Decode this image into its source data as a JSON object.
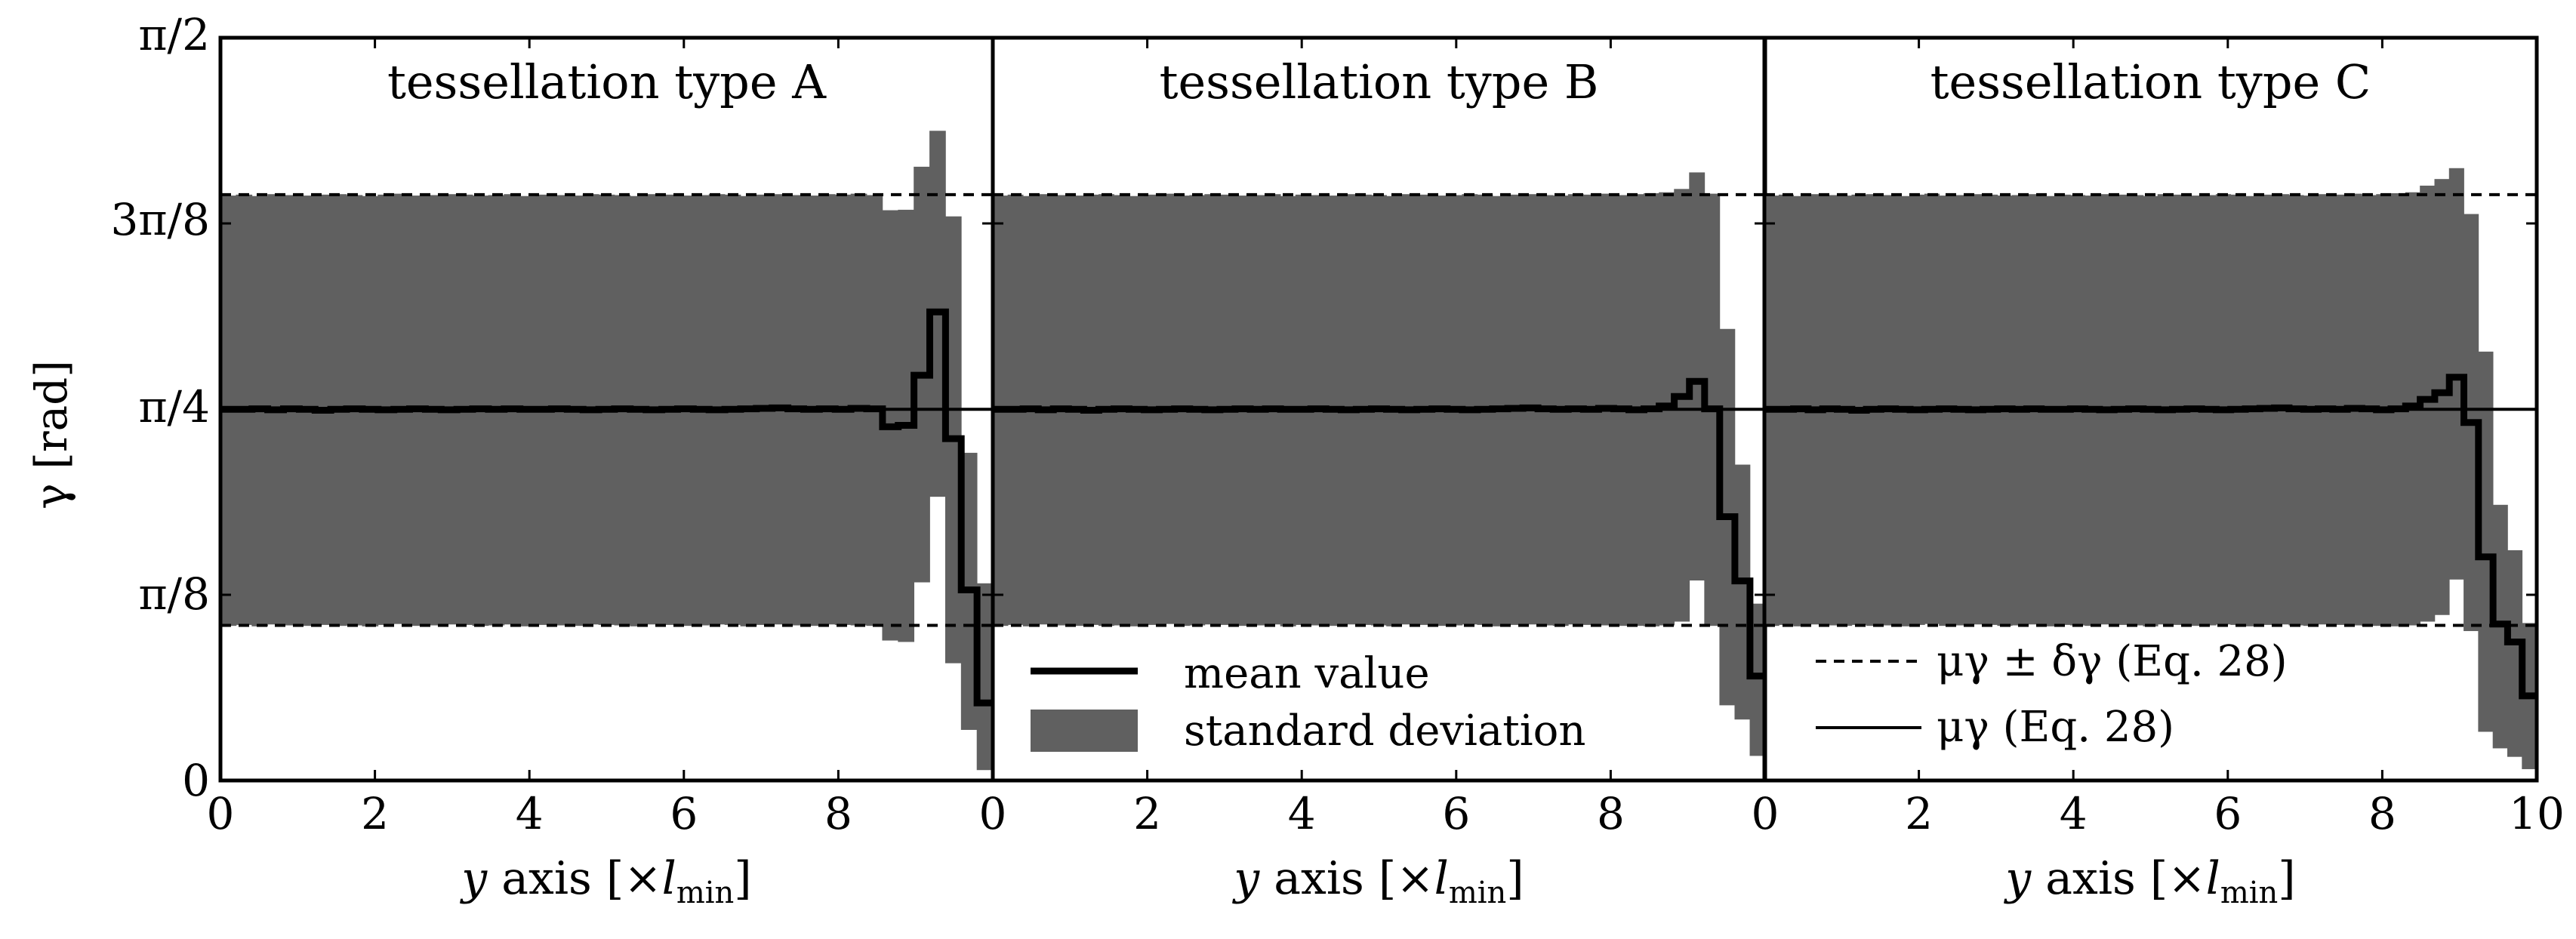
{
  "figure": {
    "y_axis_label": "γ [rad]",
    "y_tick_labels": [
      "0",
      "π/8",
      "π/4",
      "3π/8",
      "π/2"
    ]
  },
  "legend_left": {
    "mean_label": "mean value",
    "std_label": "standard deviation"
  },
  "legend_right": {
    "dashed_label": "μγ ± δγ (Eq. 28)",
    "solid_label": "μγ (Eq. 28)"
  },
  "colors": {
    "band": "#606060",
    "line": "#000000",
    "background": "#ffffff"
  },
  "chart_data": [
    {
      "type": "area",
      "title": "tessellation type A",
      "xlabel": "y axis [×l_min]",
      "ylabel": "γ [rad]",
      "xlim": [
        0,
        10
      ],
      "ylim": [
        0,
        1.5708
      ],
      "x_ticks": [
        "0",
        "2",
        "4",
        "6",
        "8",
        "0"
      ],
      "y_ticks": [
        "0",
        "π/8",
        "π/4",
        "3π/8",
        "π/2"
      ],
      "reference": {
        "mu": 0.785,
        "mu_minus_delta": 0.328,
        "mu_plus_delta": 1.239
      },
      "series": [
        {
          "name": "mean value",
          "style": "step",
          "values": [
            0.785,
            0.785,
            0.786,
            0.784,
            0.786,
            0.785,
            0.783,
            0.785,
            0.786,
            0.785,
            0.784,
            0.785,
            0.786,
            0.785,
            0.784,
            0.785,
            0.786,
            0.785,
            0.786,
            0.785,
            0.785,
            0.786,
            0.785,
            0.784,
            0.785,
            0.786,
            0.785,
            0.784,
            0.785,
            0.786,
            0.785,
            0.784,
            0.785,
            0.786,
            0.787,
            0.788,
            0.786,
            0.785,
            0.786,
            0.785,
            0.787,
            0.786,
            0.748,
            0.751,
            0.857,
            0.991,
            0.723,
            0.403,
            0.164
          ]
        },
        {
          "name": "standard deviation upper",
          "style": "band",
          "values": [
            1.237,
            1.239,
            1.236,
            1.24,
            1.238,
            1.237,
            1.239,
            1.24,
            1.238,
            1.236,
            1.239,
            1.241,
            1.237,
            1.238,
            1.24,
            1.239,
            1.237,
            1.238,
            1.24,
            1.236,
            1.239,
            1.238,
            1.237,
            1.24,
            1.239,
            1.238,
            1.236,
            1.24,
            1.239,
            1.237,
            1.238,
            1.24,
            1.239,
            1.236,
            1.239,
            1.24,
            1.238,
            1.237,
            1.24,
            1.239,
            1.241,
            1.238,
            1.206,
            1.207,
            1.298,
            1.374,
            1.193,
            0.693,
            0.417
          ]
        },
        {
          "name": "standard deviation lower",
          "style": "band",
          "values": [
            0.327,
            0.329,
            0.326,
            0.33,
            0.328,
            0.327,
            0.329,
            0.327,
            0.328,
            0.326,
            0.329,
            0.331,
            0.327,
            0.328,
            0.33,
            0.329,
            0.327,
            0.328,
            0.33,
            0.326,
            0.329,
            0.328,
            0.327,
            0.33,
            0.329,
            0.328,
            0.326,
            0.33,
            0.329,
            0.327,
            0.328,
            0.33,
            0.329,
            0.326,
            0.329,
            0.33,
            0.328,
            0.327,
            0.33,
            0.329,
            0.328,
            0.327,
            0.296,
            0.293,
            0.419,
            0.6,
            0.248,
            0.107,
            0.022
          ]
        }
      ]
    },
    {
      "type": "area",
      "title": "tessellation type B",
      "xlabel": "y axis [×l_min]",
      "ylabel": "",
      "xlim": [
        0,
        10
      ],
      "ylim": [
        0,
        1.5708
      ],
      "x_ticks": [
        "2",
        "4",
        "6",
        "8",
        "0"
      ],
      "reference": {
        "mu": 0.785,
        "mu_minus_delta": 0.328,
        "mu_plus_delta": 1.239
      },
      "series": [
        {
          "name": "mean value",
          "style": "step",
          "values": [
            0.785,
            0.785,
            0.786,
            0.784,
            0.786,
            0.785,
            0.783,
            0.785,
            0.786,
            0.785,
            0.784,
            0.785,
            0.786,
            0.785,
            0.784,
            0.785,
            0.786,
            0.785,
            0.786,
            0.785,
            0.785,
            0.786,
            0.785,
            0.784,
            0.785,
            0.786,
            0.785,
            0.784,
            0.785,
            0.786,
            0.785,
            0.784,
            0.785,
            0.786,
            0.787,
            0.788,
            0.786,
            0.785,
            0.786,
            0.785,
            0.787,
            0.786,
            0.784,
            0.786,
            0.792,
            0.812,
            0.844,
            0.786,
            0.558,
            0.422,
            0.221
          ]
        },
        {
          "name": "standard deviation upper",
          "style": "band",
          "values": [
            1.237,
            1.239,
            1.236,
            1.24,
            1.238,
            1.237,
            1.239,
            1.24,
            1.238,
            1.236,
            1.239,
            1.241,
            1.237,
            1.238,
            1.24,
            1.239,
            1.237,
            1.238,
            1.24,
            1.236,
            1.239,
            1.238,
            1.237,
            1.24,
            1.239,
            1.238,
            1.236,
            1.24,
            1.239,
            1.237,
            1.238,
            1.24,
            1.239,
            1.236,
            1.239,
            1.24,
            1.238,
            1.237,
            1.24,
            1.239,
            1.241,
            1.238,
            1.24,
            1.242,
            1.244,
            1.251,
            1.286,
            1.241,
            0.955,
            0.668,
            0.374
          ]
        },
        {
          "name": "standard deviation lower",
          "style": "band",
          "values": [
            0.327,
            0.329,
            0.326,
            0.33,
            0.328,
            0.327,
            0.329,
            0.327,
            0.328,
            0.326,
            0.329,
            0.331,
            0.327,
            0.328,
            0.33,
            0.329,
            0.327,
            0.328,
            0.33,
            0.326,
            0.329,
            0.328,
            0.327,
            0.33,
            0.329,
            0.328,
            0.326,
            0.33,
            0.329,
            0.327,
            0.328,
            0.33,
            0.329,
            0.326,
            0.329,
            0.33,
            0.328,
            0.327,
            0.33,
            0.329,
            0.328,
            0.327,
            0.327,
            0.326,
            0.328,
            0.336,
            0.423,
            0.327,
            0.159,
            0.129,
            0.052
          ]
        }
      ]
    },
    {
      "type": "area",
      "title": "tessellation type C",
      "xlabel": "y axis [×l_min]",
      "ylabel": "",
      "xlim": [
        0,
        10
      ],
      "ylim": [
        0,
        1.5708
      ],
      "x_ticks": [
        "2",
        "4",
        "6",
        "8",
        "10"
      ],
      "reference": {
        "mu": 0.785,
        "mu_minus_delta": 0.328,
        "mu_plus_delta": 1.239
      },
      "series": [
        {
          "name": "mean value",
          "style": "step",
          "values": [
            0.785,
            0.785,
            0.786,
            0.784,
            0.786,
            0.785,
            0.783,
            0.785,
            0.786,
            0.785,
            0.784,
            0.785,
            0.786,
            0.785,
            0.784,
            0.785,
            0.786,
            0.785,
            0.786,
            0.785,
            0.785,
            0.786,
            0.785,
            0.784,
            0.785,
            0.786,
            0.785,
            0.784,
            0.785,
            0.786,
            0.785,
            0.784,
            0.785,
            0.786,
            0.787,
            0.788,
            0.786,
            0.785,
            0.786,
            0.785,
            0.787,
            0.786,
            0.784,
            0.786,
            0.792,
            0.806,
            0.82,
            0.853,
            0.757,
            0.473,
            0.331,
            0.293,
            0.179
          ]
        },
        {
          "name": "standard deviation upper",
          "style": "band",
          "values": [
            1.237,
            1.239,
            1.236,
            1.24,
            1.238,
            1.237,
            1.239,
            1.24,
            1.238,
            1.236,
            1.239,
            1.241,
            1.237,
            1.238,
            1.24,
            1.239,
            1.237,
            1.238,
            1.24,
            1.236,
            1.239,
            1.238,
            1.237,
            1.24,
            1.239,
            1.238,
            1.236,
            1.24,
            1.239,
            1.237,
            1.238,
            1.24,
            1.239,
            1.236,
            1.239,
            1.24,
            1.238,
            1.237,
            1.24,
            1.239,
            1.241,
            1.238,
            1.24,
            1.242,
            1.244,
            1.258,
            1.272,
            1.295,
            1.198,
            0.907,
            0.583,
            0.487,
            0.333
          ]
        },
        {
          "name": "standard deviation lower",
          "style": "band",
          "values": [
            0.327,
            0.329,
            0.326,
            0.33,
            0.328,
            0.327,
            0.329,
            0.327,
            0.328,
            0.326,
            0.329,
            0.331,
            0.327,
            0.328,
            0.33,
            0.329,
            0.327,
            0.328,
            0.33,
            0.326,
            0.329,
            0.328,
            0.327,
            0.33,
            0.329,
            0.328,
            0.326,
            0.33,
            0.329,
            0.327,
            0.328,
            0.33,
            0.329,
            0.326,
            0.329,
            0.33,
            0.328,
            0.327,
            0.33,
            0.329,
            0.328,
            0.327,
            0.327,
            0.326,
            0.328,
            0.336,
            0.35,
            0.425,
            0.316,
            0.103,
            0.068,
            0.05,
            0.024
          ]
        }
      ]
    }
  ]
}
